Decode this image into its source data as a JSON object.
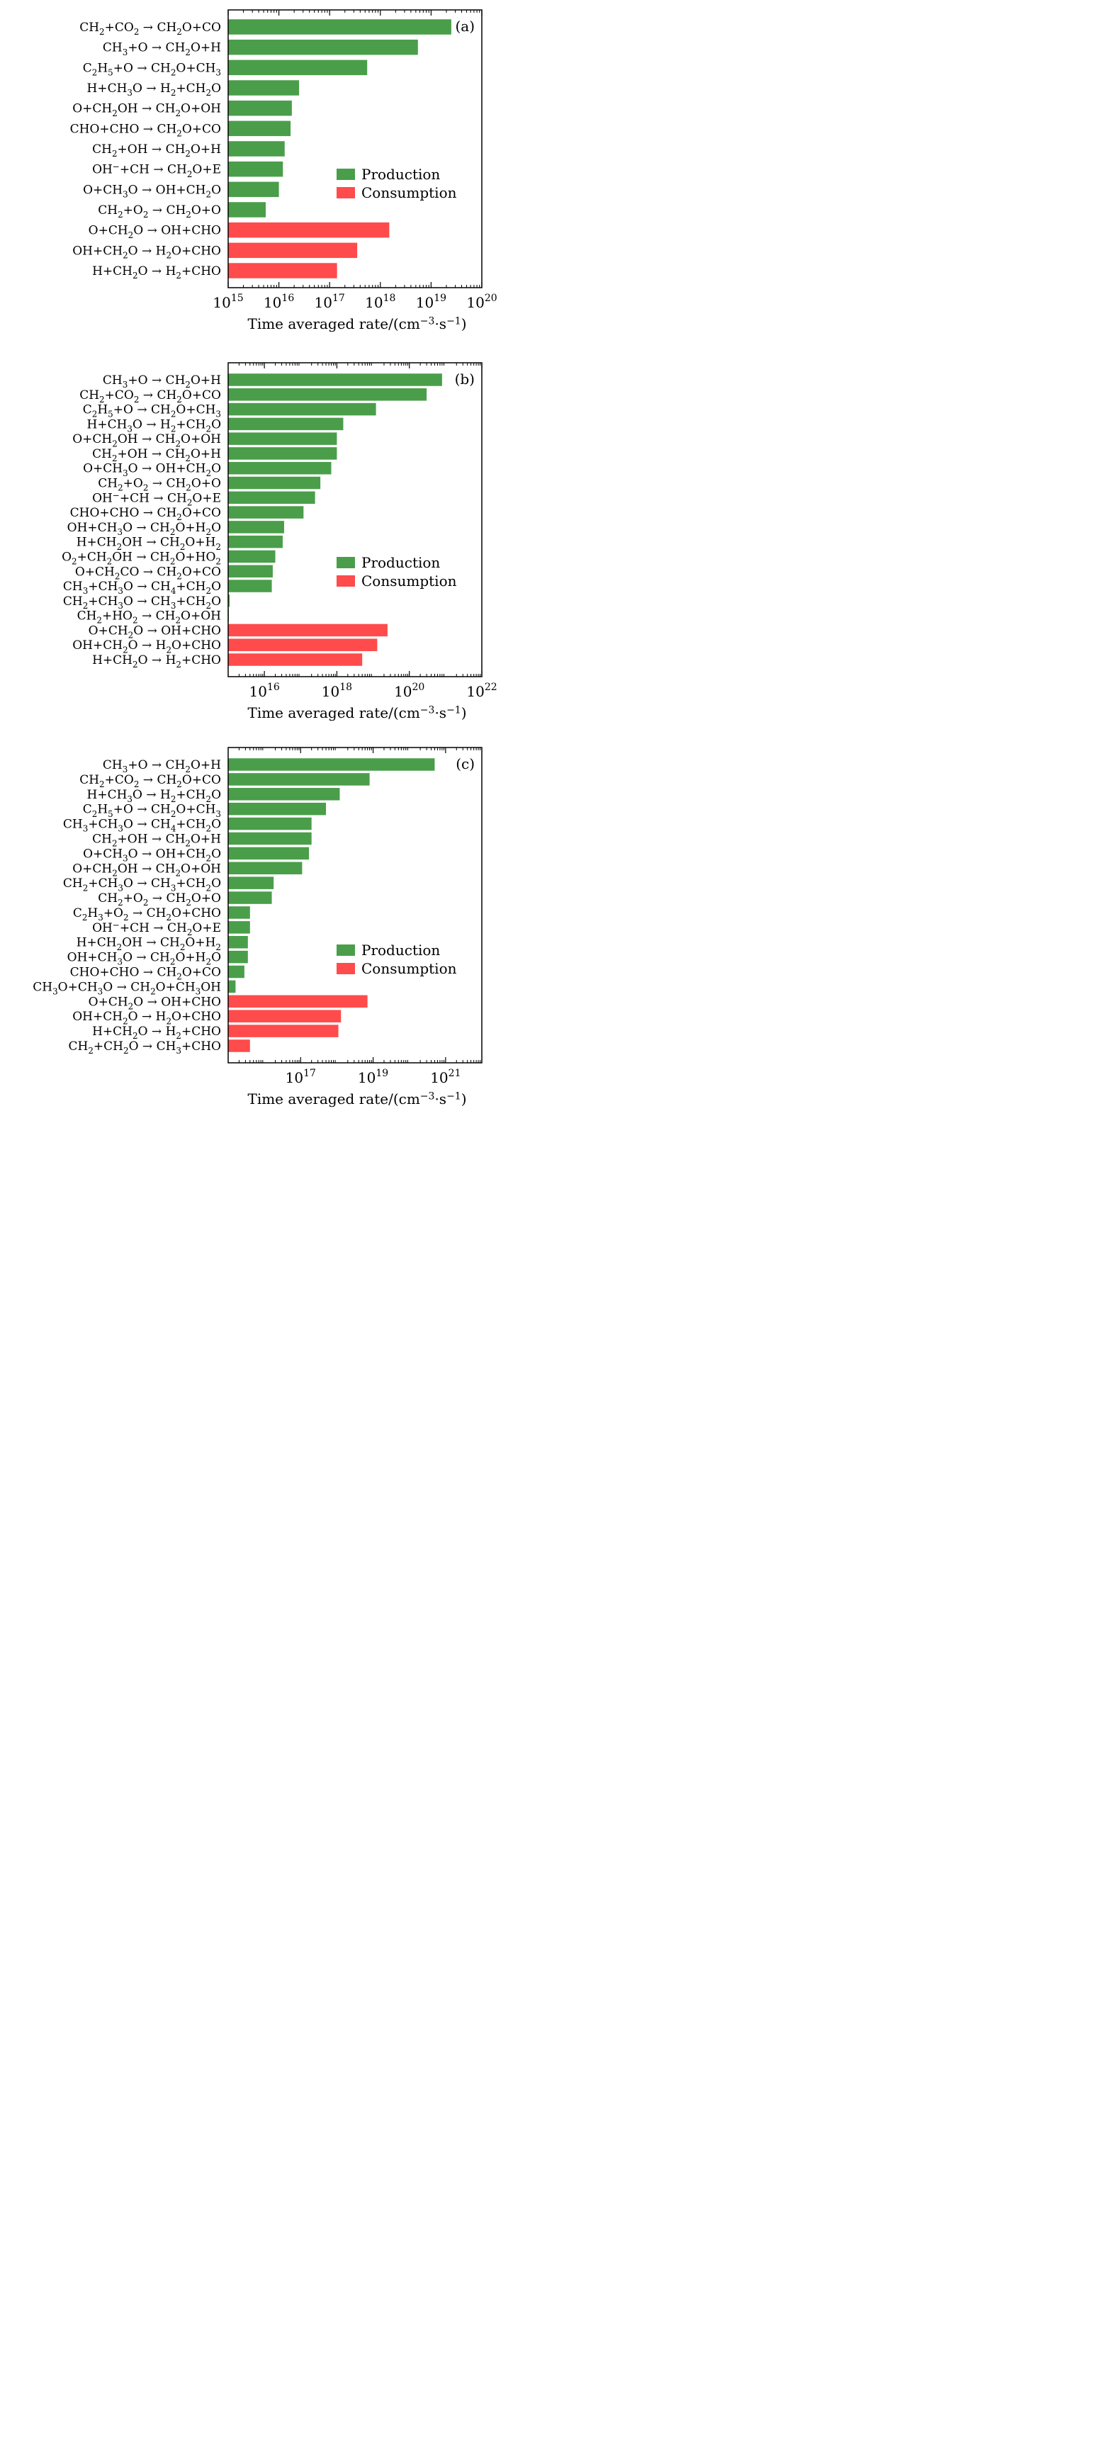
{
  "figure": {
    "legend_production": "Production",
    "legend_consumption": "Consumption",
    "colors": {
      "production": "#4a9e4a",
      "consumption": "#ff4b4b",
      "frame": "#000000"
    }
  },
  "chart_data": [
    {
      "type": "bar",
      "orientation": "horizontal",
      "panel_label": "(a)",
      "xlabel": "Time averaged rate/(cm⁻³·s⁻¹)",
      "x_scale": "log",
      "xlim": [
        1000000000000000.0,
        1e+20
      ],
      "x_ticks": [
        1000000000000000.0,
        1e+16,
        1e+17,
        1e+18,
        1e+19,
        1e+20
      ],
      "x_tick_labels": [
        {
          "base": "10",
          "exp": "15"
        },
        {
          "base": "10",
          "exp": "16"
        },
        {
          "base": "10",
          "exp": "17"
        },
        {
          "base": "10",
          "exp": "18"
        },
        {
          "base": "10",
          "exp": "19"
        },
        {
          "base": "10",
          "exp": "20"
        }
      ],
      "legend_position": "center-right",
      "categories": [
        "CH₂+CO₂→CH₂O+CO",
        "CH₃+O→CH₂O+H",
        "C₂H₅+O→CH₂O+CH₃",
        "H+CH₃O→H₂+CH₂O",
        "O+CH₂OH→CH₂O+OH",
        "CHO+CHO→CH₂O+CO",
        "CH₂+OH→CH₂O+H",
        "OH⁻+CH→CH₂O+E",
        "O+CH₃O→OH+CH₂O",
        "CH₂+O₂→CH₂O+O",
        "O+CH₂O→OH+CHO",
        "OH+CH₂O→H₂O+CHO",
        "H+CH₂O→H₂+CHO"
      ],
      "values": [
        2.5e+19,
        5.5e+18,
        5.5e+17,
        2.5e+16,
        1.8e+16,
        1.7e+16,
        1.3e+16,
        1.2e+16,
        1e+16,
        5500000000000000.0,
        1.5e+18,
        3.5e+17,
        1.4e+17
      ],
      "kinds": [
        "production",
        "production",
        "production",
        "production",
        "production",
        "production",
        "production",
        "production",
        "production",
        "production",
        "consumption",
        "consumption",
        "consumption"
      ]
    },
    {
      "type": "bar",
      "orientation": "horizontal",
      "panel_label": "(b)",
      "xlabel": "Time averaged rate/(cm⁻³·s⁻¹)",
      "x_scale": "log",
      "xlim": [
        1000000000000000.0,
        1e+22
      ],
      "x_ticks": [
        1e+16,
        1e+18,
        1e+20,
        1e+22
      ],
      "x_tick_labels": [
        {
          "base": "10",
          "exp": "16"
        },
        {
          "base": "10",
          "exp": "18"
        },
        {
          "base": "10",
          "exp": "20"
        },
        {
          "base": "10",
          "exp": "22"
        }
      ],
      "legend_position": "center-right",
      "categories": [
        "CH₃+O→CH₂O+H",
        "CH₂+CO₂→CH₂O+CO",
        "C₂H₅+O→CH₂O+CH₃",
        "H+CH₃O→H₂+CH₂O",
        "O+CH₂OH→CH₂O+OH",
        "CH₂+OH→CH₂O+H",
        "O+CH₃O→OH+CH₂O",
        "CH₂+O₂→CH₂O+O",
        "OH⁻+CH→CH₂O+E",
        "CHO+CHO→CH₂O+CO",
        "OH+CH₃O→CH₂O+H₂O",
        "H+CH₂OH→CH₂O+H₂",
        "O₂+CH₂OH→CH₂O+HO₂",
        "O+CH₂CO→CH₂O+CO",
        "CH₃+CH₃O→CH₄+CH₂O",
        "CH₂+CH₃O→CH₃+CH₂O",
        "CH₂+HO₂→CH₂O+OH",
        "O+CH₂O→OH+CHO",
        "OH+CH₂O→H₂O+CHO",
        "H+CH₂O→H₂+CHO"
      ],
      "values": [
        8e+20,
        3e+20,
        1.2e+19,
        1.5e+18,
        1e+18,
        1e+18,
        7e+17,
        3.5e+17,
        2.5e+17,
        1.2e+17,
        3.5e+16,
        3.2e+16,
        2e+16,
        1.7e+16,
        1.6e+16,
        1100000000000000.0,
        1020000000000000.0,
        2.5e+19,
        1.3e+19,
        5e+18
      ],
      "kinds": [
        "production",
        "production",
        "production",
        "production",
        "production",
        "production",
        "production",
        "production",
        "production",
        "production",
        "production",
        "production",
        "production",
        "production",
        "production",
        "production",
        "production",
        "consumption",
        "consumption",
        "consumption"
      ]
    },
    {
      "type": "bar",
      "orientation": "horizontal",
      "panel_label": "(c)",
      "xlabel": "Time averaged rate/(cm⁻³·s⁻¹)",
      "x_scale": "log",
      "xlim": [
        1000000000000000.0,
        1e+22
      ],
      "x_ticks": [
        1e+17,
        1e+19,
        1e+21
      ],
      "x_tick_labels": [
        {
          "base": "10",
          "exp": "17"
        },
        {
          "base": "10",
          "exp": "19"
        },
        {
          "base": "10",
          "exp": "21"
        }
      ],
      "legend_position": "center-right",
      "categories": [
        "CH₃+O→CH₂O+H",
        "CH₂+CO₂→CH₂O+CO",
        "H+CH₃O→H₂+CH₂O",
        "C₂H₅+O→CH₂O+CH₃",
        "CH₃+CH₃O→CH₄+CH₂O",
        "CH₂+OH→CH₂O+H",
        "O+CH₃O→OH+CH₂O",
        "O+CH₂OH→CH₂O+OH",
        "CH₂+CH₃O→CH₃+CH₂O",
        "CH₂+O₂→CH₂O+O",
        "C₂H₃+O₂→CH₂O+CHO",
        "OH⁻+CH→CH₂O+E",
        "H+CH₂OH→CH₂O+H₂",
        "OH+CH₃O→CH₂O+H₂O",
        "CHO+CHO→CH₂O+CO",
        "CH₃O+CH₃O→CH₂O+CH₃OH",
        "O+CH₂O→OH+CHO",
        "OH+CH₂O→H₂O+CHO",
        "H+CH₂O→H₂+CHO",
        "CH₂+CH₂O→CH₃+CHO"
      ],
      "values": [
        5e+20,
        8e+18,
        1.2e+18,
        5e+17,
        2e+17,
        2e+17,
        1.7e+17,
        1.1e+17,
        1.8e+16,
        1.6e+16,
        4000000000000000.0,
        4000000000000000.0,
        3500000000000000.0,
        3500000000000000.0,
        2800000000000000.0,
        1600000000000000.0,
        7e+18,
        1.3e+18,
        1.1e+18,
        4000000000000000.0
      ],
      "kinds": [
        "production",
        "production",
        "production",
        "production",
        "production",
        "production",
        "production",
        "production",
        "production",
        "production",
        "production",
        "production",
        "production",
        "production",
        "production",
        "production",
        "consumption",
        "consumption",
        "consumption",
        "consumption"
      ]
    }
  ]
}
